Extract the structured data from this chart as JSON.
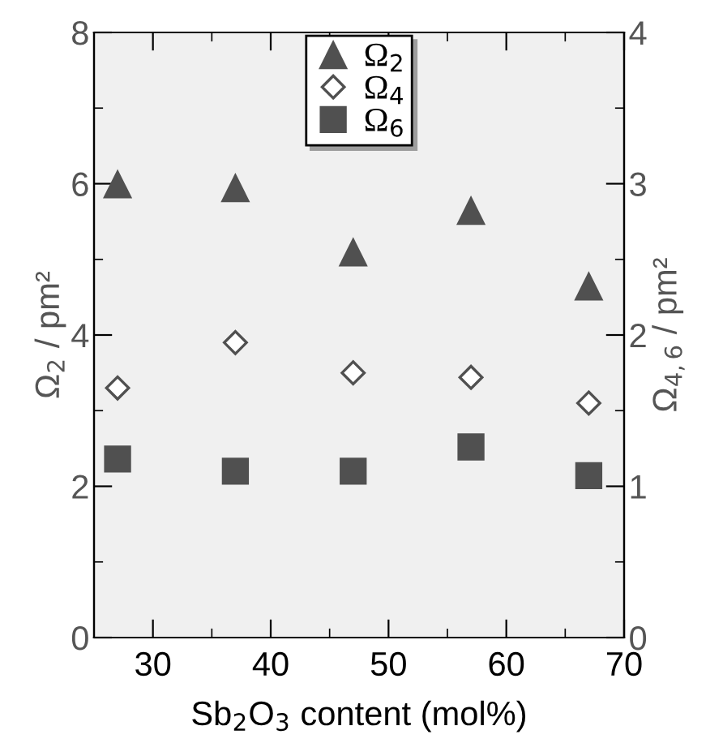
{
  "chart_data": {
    "type": "scatter",
    "xlabel": "Sb$_{2}$O$_{3}$ content (mol%)",
    "ylabel": "Ω$_{2}$ / pm²",
    "y2label": "Ω$_{4,6}$ / pm²",
    "x": [
      27,
      37,
      47,
      57,
      67
    ],
    "series": [
      {
        "name": "Ω$_{2}$",
        "color": "#505050",
        "marker": "triangle",
        "values": [
          6.0,
          5.95,
          5.1,
          5.65,
          4.65
        ]
      },
      {
        "name": "Ω$_{4}$",
        "color": "#ffffff",
        "marker": "diamond",
        "axis": "y2",
        "values": [
          1.65,
          1.95,
          1.75,
          1.72,
          1.55
        ]
      },
      {
        "name": "Ω$_{6}$",
        "color": "#505050",
        "marker": "square",
        "axis": "y2",
        "values": [
          1.18,
          1.1,
          1.1,
          1.26,
          1.07
        ]
      }
    ],
    "xlim": [
      25,
      70
    ],
    "xticks": [
      30,
      40,
      50,
      60,
      70
    ],
    "ylim": [
      0,
      8
    ],
    "yticks": [
      0,
      2,
      4,
      6,
      8
    ],
    "y2lim": [
      0,
      4
    ],
    "y2ticks": [
      0,
      1,
      2,
      3,
      4
    ],
    "grid": false,
    "legend": "top"
  }
}
